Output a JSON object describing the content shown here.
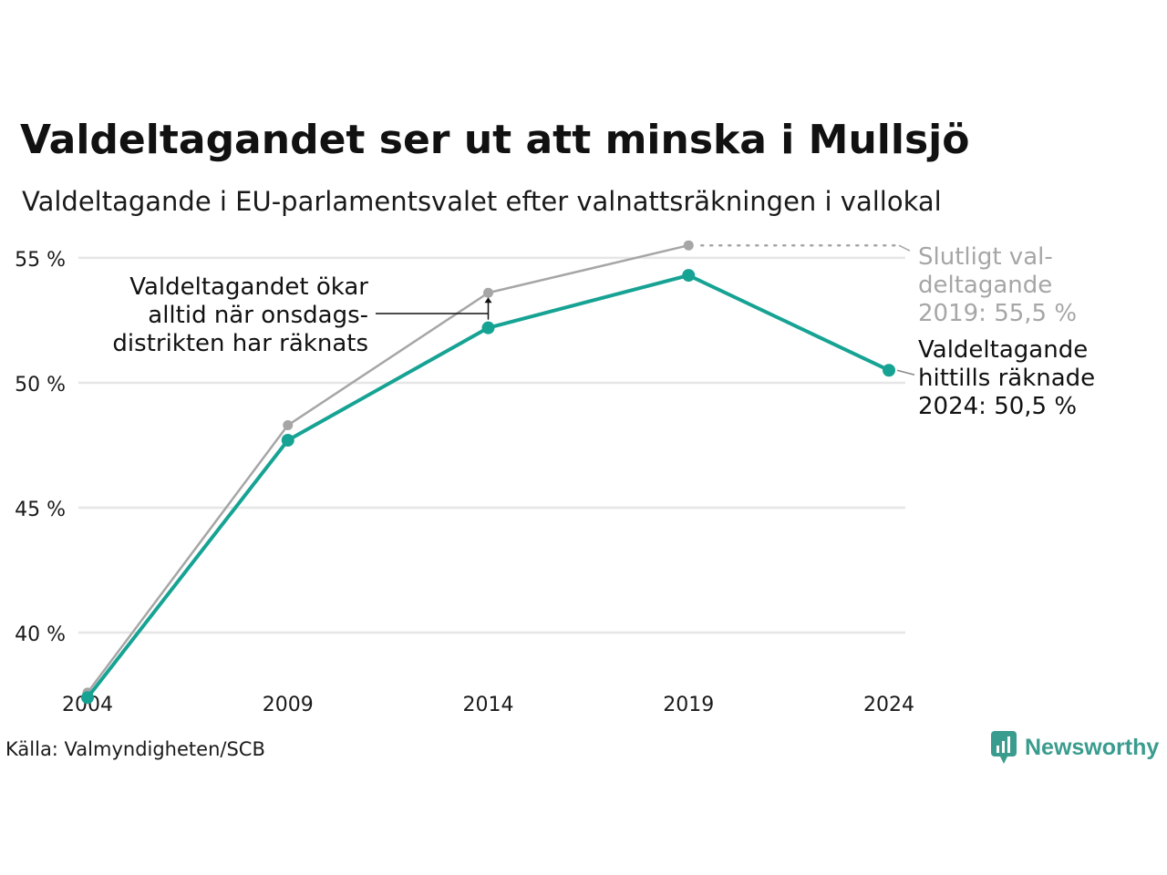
{
  "title": "Valdeltagandet ser ut att minska i Mullsjö",
  "subtitle": "Valdeltagande i EU-parlamentsvalet efter valnattsräkningen i vallokal",
  "source": "Källa: Valmyndigheten/SCB",
  "brand": "Newsworthy",
  "colors": {
    "final": "#a6a6a6",
    "counted": "#16a394",
    "grid": "#e6e6e6",
    "brand": "#3a9c8e"
  },
  "chart_data": {
    "type": "line",
    "x": [
      2004,
      2009,
      2014,
      2019,
      2024
    ],
    "x_tick_labels": [
      "2004",
      "2009",
      "2014",
      "2019",
      "2024"
    ],
    "y_ticks": [
      40,
      45,
      50,
      55
    ],
    "y_tick_labels": [
      "40 %",
      "45 %",
      "50 %",
      "55 %"
    ],
    "ylim": [
      36.5,
      56.2
    ],
    "grid": true,
    "series": [
      {
        "key": "final",
        "values": [
          37.6,
          48.3,
          53.6,
          55.5,
          null
        ],
        "color": "#a6a6a6"
      },
      {
        "key": "counted",
        "values": [
          37.4,
          47.7,
          52.2,
          54.3,
          50.5
        ],
        "color": "#16a394"
      }
    ],
    "annotations": {
      "wednesday": [
        "Valdeltagandet ökar",
        "alltid när onsdags-",
        "distrikten har räknats"
      ],
      "final_2019": [
        "Slutligt val-",
        "deltagande",
        "2019: 55,5 %"
      ],
      "counted_2024": [
        "Valdeltagande",
        "hittills räknade",
        "2024: 50,5 %"
      ]
    }
  }
}
